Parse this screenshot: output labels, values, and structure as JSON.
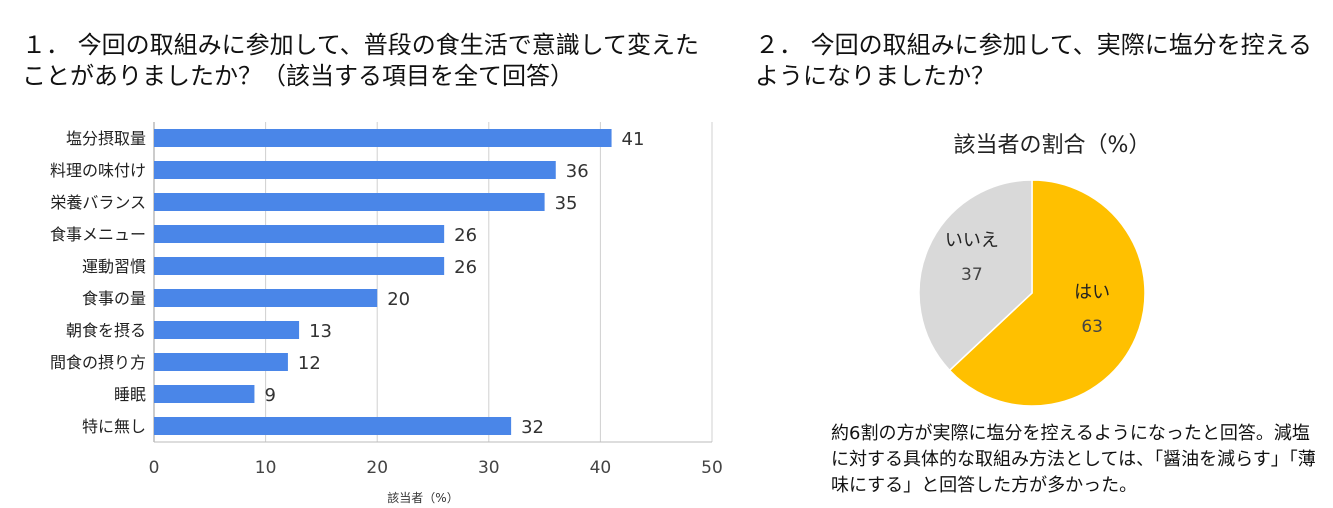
{
  "q1": {
    "title": "１． 今回の取組みに参加して、普段の食生活で意識して変えたことがありましたか？（該当する項目を全て回答）"
  },
  "q2": {
    "title": "２． 今回の取組みに参加して、実際に塩分を控えるようになりましたか？"
  },
  "note": "約6割の方が実際に塩分を控えるようになったと回答。減塩に対する具体的な取組み方法としては、「醤油を減らす」「薄味にする」と回答した方が多かった。",
  "chart_data": [
    {
      "type": "bar",
      "orientation": "horizontal",
      "categories": [
        "塩分摂取量",
        "料理の味付け",
        "栄養バランス",
        "食事メニュー",
        "運動習慣",
        "食事の量",
        "朝食を摂る",
        "間食の摂り方",
        "睡眠",
        "特に無し"
      ],
      "values": [
        41,
        36,
        35,
        26,
        26,
        20,
        13,
        12,
        9,
        32
      ],
      "xlabel": "該当者（%）",
      "xlim": [
        0,
        50
      ],
      "xticks": [
        0,
        10,
        20,
        30,
        40,
        50
      ],
      "grid": true,
      "color": "#4a86e8"
    },
    {
      "type": "pie",
      "title": "該当者の割合（%）",
      "labels": [
        "はい",
        "いいえ"
      ],
      "values": [
        63,
        37
      ],
      "colors": [
        "#ffc000",
        "#d9d9d9"
      ]
    }
  ]
}
